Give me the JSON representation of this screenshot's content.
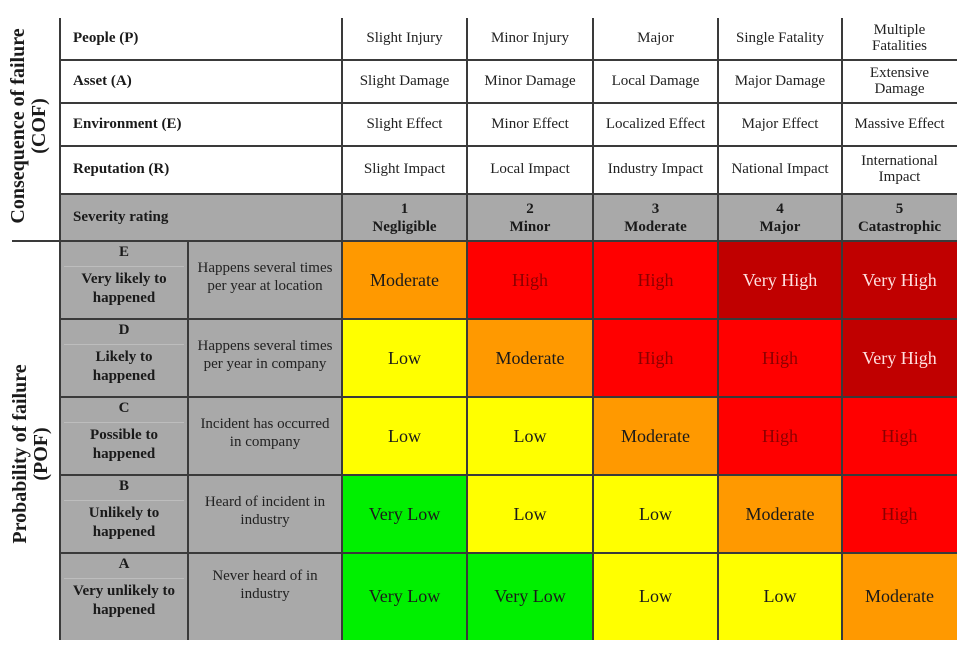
{
  "axes": {
    "consequence_label_line1": "Consequence of failure",
    "consequence_label_line2": "(COF)",
    "probability_label_line1": "Probability of failure",
    "probability_label_line2": "(POF)"
  },
  "consequence_rows": [
    {
      "label": "People (P)",
      "values": [
        "Slight Injury",
        "Minor Injury",
        "Major",
        "Single Fatality",
        "Multiple Fatalities"
      ]
    },
    {
      "label": "Asset (A)",
      "values": [
        "Slight Damage",
        "Minor Damage",
        "Local Damage",
        "Major Damage",
        "Extensive Damage"
      ]
    },
    {
      "label": "Environment (E)",
      "values": [
        "Slight Effect",
        "Minor Effect",
        "Localized Effect",
        "Major Effect",
        "Massive Effect"
      ]
    },
    {
      "label": "Reputation (R)",
      "values": [
        "Slight Impact",
        "Local Impact",
        "Industry Impact",
        "National Impact",
        "International Impact"
      ]
    }
  ],
  "severity": {
    "label": "Severity rating",
    "levels": [
      {
        "number": "1",
        "name": "Negligible"
      },
      {
        "number": "2",
        "name": "Minor"
      },
      {
        "number": "3",
        "name": "Moderate"
      },
      {
        "number": "4",
        "name": "Major"
      },
      {
        "number": "5",
        "name": "Catastrophic"
      }
    ]
  },
  "probability_rows": [
    {
      "letter": "E",
      "label": "Very likely to happened",
      "description": "Happens several times per year at location",
      "risks": [
        "Moderate",
        "High",
        "High",
        "Very High",
        "Very High"
      ]
    },
    {
      "letter": "D",
      "label": "Likely to happened",
      "description": "Happens several times per year in company",
      "risks": [
        "Low",
        "Moderate",
        "High",
        "High",
        "Very High"
      ]
    },
    {
      "letter": "C",
      "label": "Possible to happened",
      "description": "Incident has occurred in company",
      "risks": [
        "Low",
        "Low",
        "Moderate",
        "High",
        "High"
      ]
    },
    {
      "letter": "B",
      "label": "Unlikely to happened",
      "description": "Heard of incident in industry",
      "risks": [
        "Very Low",
        "Low",
        "Low",
        "Moderate",
        "High"
      ]
    },
    {
      "letter": "A",
      "label": "Very unlikely to happened",
      "description": "Never heard of in industry",
      "risks": [
        "Very Low",
        "Very Low",
        "Low",
        "Low",
        "Moderate"
      ]
    }
  ],
  "risk_colors": {
    "Very Low": {
      "bg": "#00f000",
      "fg": "#1a1a1a"
    },
    "Low": {
      "bg": "#ffff00",
      "fg": "#1a1a1a"
    },
    "Moderate": {
      "bg": "#ff9900",
      "fg": "#1a1a1a"
    },
    "High": {
      "bg": "#ff0000",
      "fg": "#8b0000"
    },
    "Very High": {
      "bg": "#c00000",
      "fg": "#ffe0e0"
    }
  },
  "header_grey": "#a9a9a9"
}
